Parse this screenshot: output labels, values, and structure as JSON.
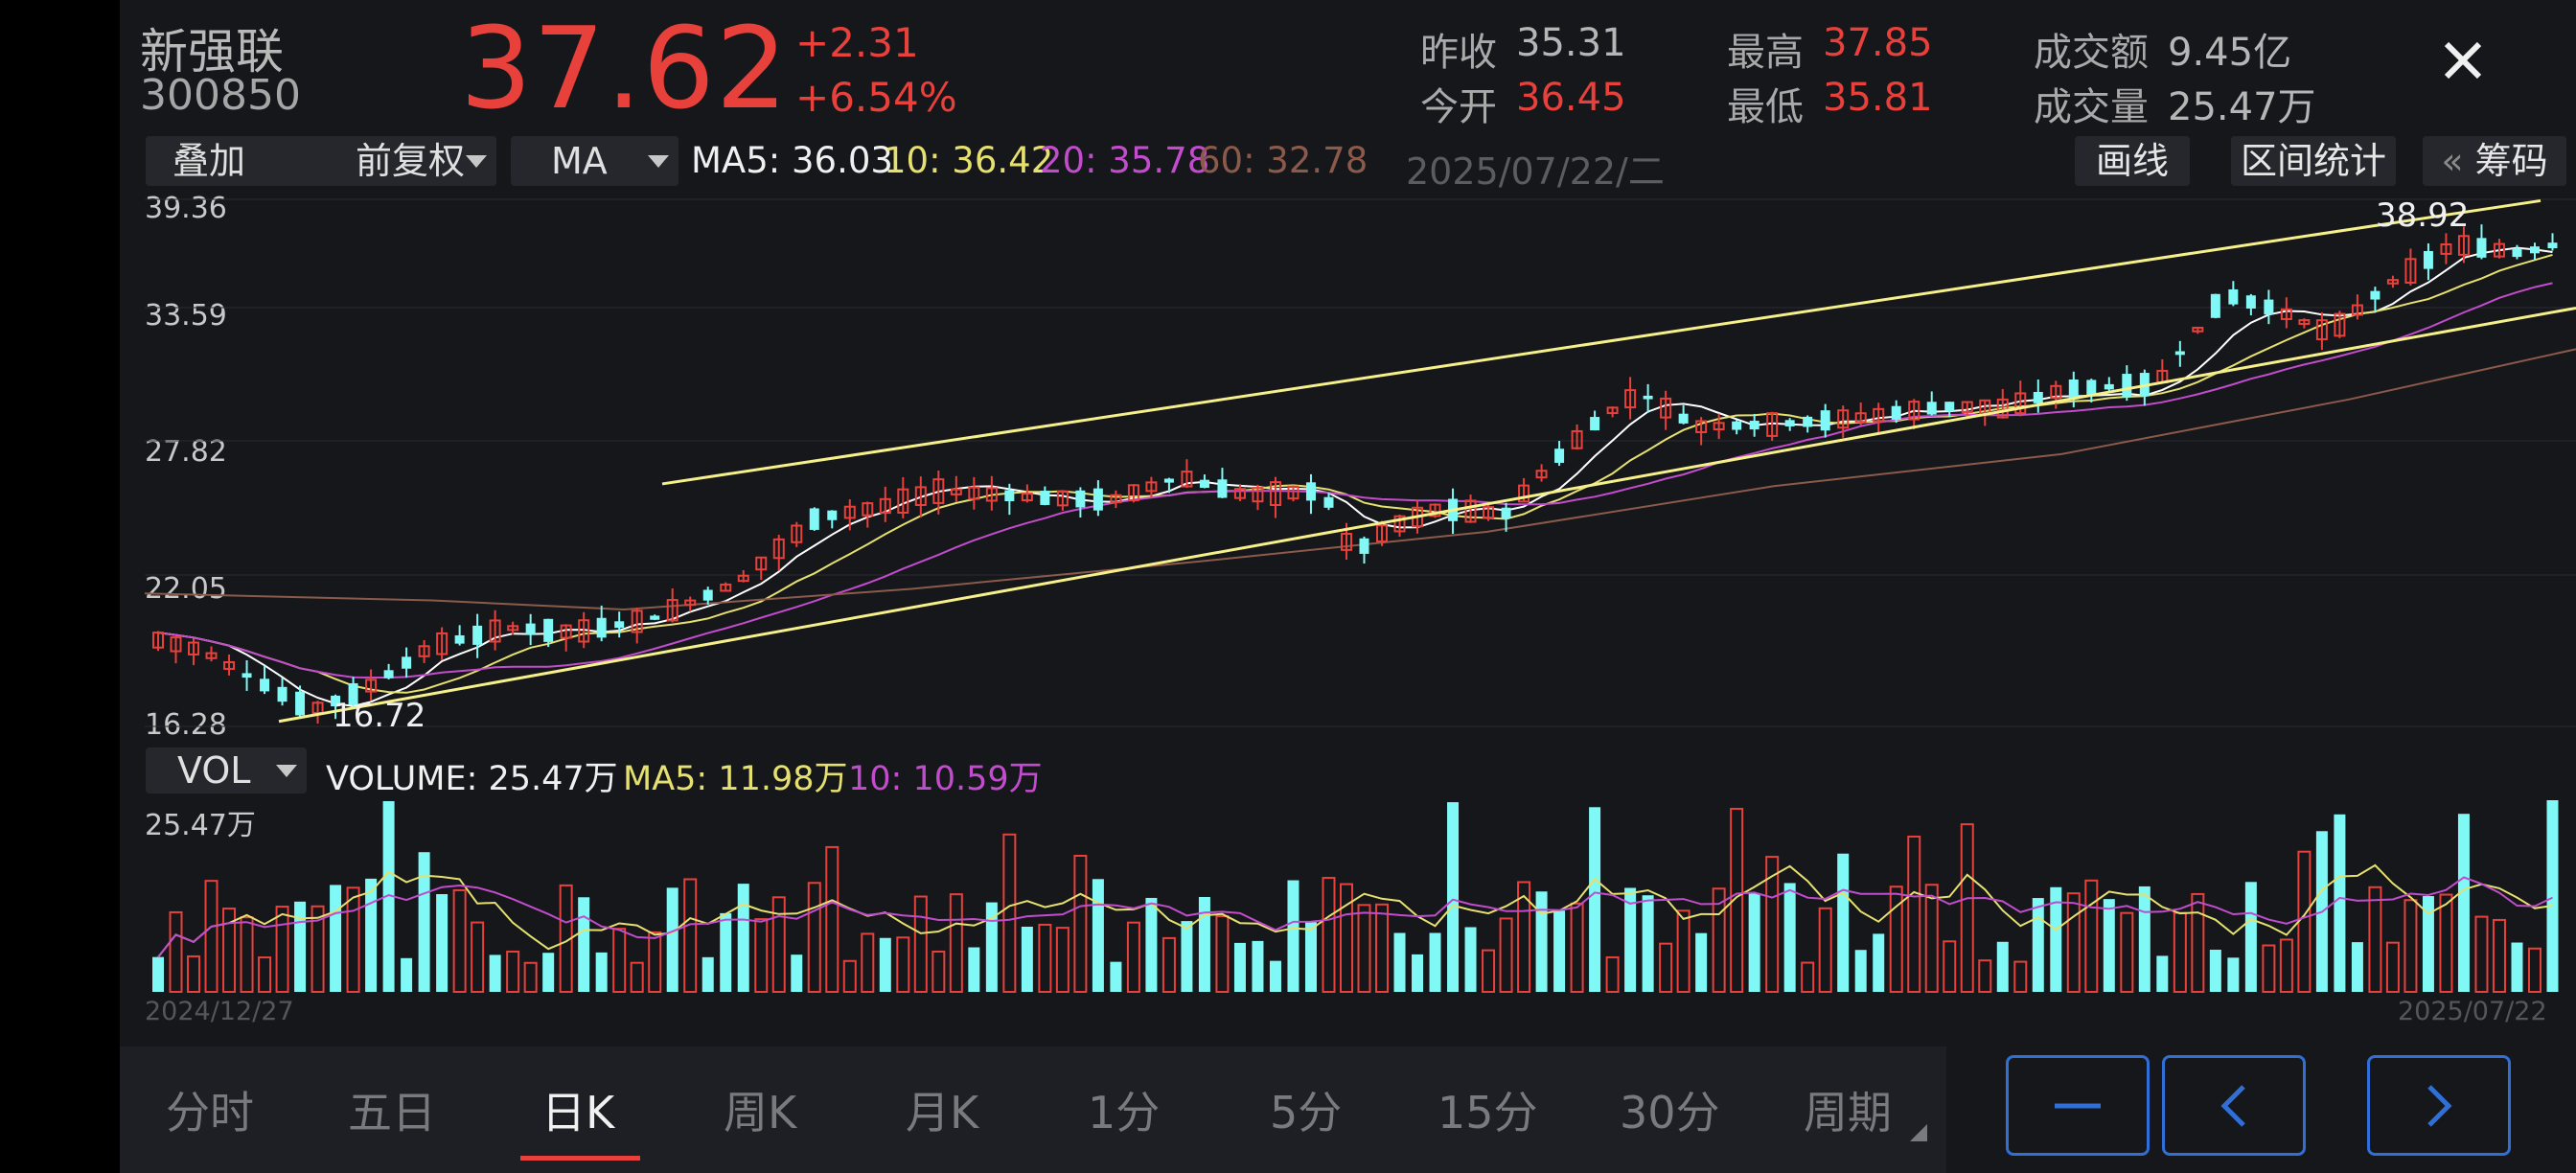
{
  "stock": {
    "name": "新强联",
    "code": "300850",
    "price": "37.62",
    "change": "+2.31",
    "change_pct": "+6.54%"
  },
  "quote": {
    "prev_close": {
      "label": "昨收",
      "value": "35.31"
    },
    "open": {
      "label": "今开",
      "value": "36.45"
    },
    "high": {
      "label": "最高",
      "value": "37.85"
    },
    "low": {
      "label": "最低",
      "value": "35.81"
    },
    "turnover": {
      "label": "成交额",
      "value": "9.45亿"
    },
    "volume": {
      "label": "成交量",
      "value": "25.47万"
    }
  },
  "toolbar": {
    "overlay": "叠加",
    "adjust": "前复权",
    "indicator": "MA",
    "draw": "画线",
    "range_stats": "区间统计",
    "chips": "筹码",
    "chips_prefix": "«"
  },
  "ma_legend": {
    "ma5": "MA5: 36.03",
    "ma10": "10: 36.42",
    "ma20": "20: 35.78",
    "ma60": "60: 32.78"
  },
  "selected_date": "2025/07/22/二",
  "price_axis": [
    "39.36",
    "33.59",
    "27.82",
    "22.05",
    "16.28"
  ],
  "annotations": {
    "high": "38.92",
    "low": "16.72"
  },
  "vol_panel": {
    "selector": "VOL",
    "volume": "VOLUME: 25.47万",
    "ma5": "MA5: 11.98万",
    "ma10": "10: 10.59万",
    "max_label": "25.47万"
  },
  "date_range": {
    "start": "2024/12/27",
    "end": "2025/07/22"
  },
  "period_tabs": [
    "分时",
    "五日",
    "日K",
    "周K",
    "月K",
    "1分",
    "5分",
    "15分",
    "30分",
    "周期"
  ],
  "active_tab": "日K",
  "colors": {
    "up": "#e8403a",
    "down": "#7ff8f6",
    "ma5": "#ffffff",
    "ma10": "#e5e06f",
    "ma20": "#c14ccc",
    "ma60": "#8b5a4a",
    "trendline": "#f5f08a",
    "accent": "#2f6fd6"
  },
  "icons": {
    "close": "close-icon",
    "minus": "minus-icon",
    "prev": "chevron-left-icon",
    "next": "chevron-right-icon",
    "dropdown": "caret-down-icon"
  },
  "chart_data": {
    "type": "candlestick",
    "ylim": [
      16.28,
      39.36
    ],
    "series": [
      {
        "name": "MA5",
        "value": 36.03
      },
      {
        "name": "MA10",
        "value": 36.42
      },
      {
        "name": "MA20",
        "value": 35.78
      },
      {
        "name": "MA60",
        "value": 32.78
      }
    ],
    "annotated_high": 38.92,
    "annotated_low": 16.72,
    "last_volume": "25.47万"
  }
}
